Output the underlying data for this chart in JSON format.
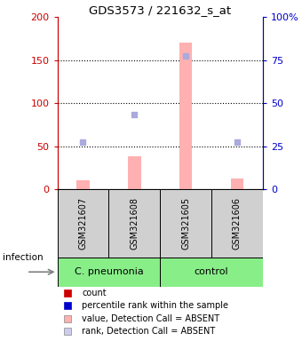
{
  "title": "GDS3573 / 221632_s_at",
  "samples": [
    "GSM321607",
    "GSM321608",
    "GSM321605",
    "GSM321606"
  ],
  "groups": [
    {
      "label": "C. pneumonia",
      "indices": [
        0,
        1
      ],
      "color": "#88EE88"
    },
    {
      "label": "control",
      "indices": [
        2,
        3
      ],
      "color": "#88EE88"
    }
  ],
  "pink_bar_values": [
    10,
    38,
    170,
    12
  ],
  "blue_dot_values": [
    55,
    87,
    155,
    55
  ],
  "left_ylim": [
    0,
    200
  ],
  "right_ylim": [
    0,
    100
  ],
  "left_yticks": [
    0,
    50,
    100,
    150,
    200
  ],
  "right_yticks": [
    0,
    25,
    50,
    75,
    100
  ],
  "left_color": "#cc0000",
  "right_color": "#0000cc",
  "pink_bar_color": "#ffb0b0",
  "blue_dot_color": "#aaaadd",
  "sample_box_color": "#d0d0d0",
  "infection_label": "infection",
  "legend_items": [
    {
      "label": "count",
      "color": "#cc0000"
    },
    {
      "label": "percentile rank within the sample",
      "color": "#0000cc"
    },
    {
      "label": "value, Detection Call = ABSENT",
      "color": "#ffb0b0"
    },
    {
      "label": "rank, Detection Call = ABSENT",
      "color": "#ccccee"
    }
  ],
  "dotted_lines": [
    50,
    100,
    150
  ],
  "bar_width": 0.25,
  "fig_width": 3.4,
  "fig_height": 3.84,
  "dpi": 100
}
